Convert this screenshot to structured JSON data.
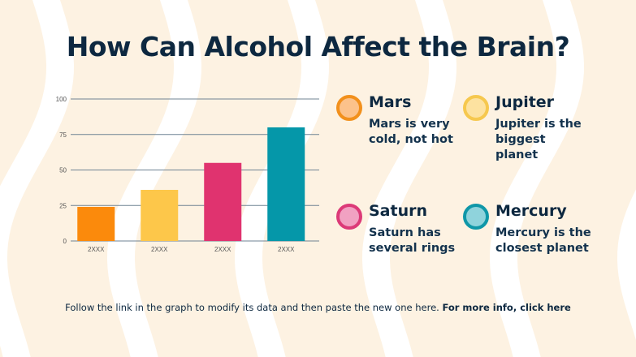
{
  "title": "How Can Alcohol Affect the Brain?",
  "chart_data": {
    "type": "bar",
    "categories": [
      "2XXX",
      "2XXX",
      "2XXX",
      "2XXX"
    ],
    "values": [
      24,
      36,
      55,
      80
    ],
    "colors": [
      "#fb8a0c",
      "#fdc74a",
      "#e0336f",
      "#0597a9"
    ],
    "yticks": [
      0,
      25,
      50,
      75,
      100
    ],
    "ylim": [
      0,
      100
    ],
    "grid": true
  },
  "legend": [
    {
      "name": "Mars",
      "desc": "Mars is very cold, not hot",
      "fill": "#fcc28b",
      "stroke": "#f2901c"
    },
    {
      "name": "Jupiter",
      "desc": "Jupiter is the biggest planet",
      "fill": "#fde2a0",
      "stroke": "#f6c84e"
    },
    {
      "name": "Saturn",
      "desc": "Saturn has several rings",
      "fill": "#f1a1c2",
      "stroke": "#dc3a78"
    },
    {
      "name": "Mercury",
      "desc": "Mercury is the closest planet",
      "fill": "#8fd3dc",
      "stroke": "#0f97a8"
    }
  ],
  "footer": {
    "text": "Follow the link in the graph to modify its data and then paste the new one here. ",
    "link": "For more info, click here"
  }
}
